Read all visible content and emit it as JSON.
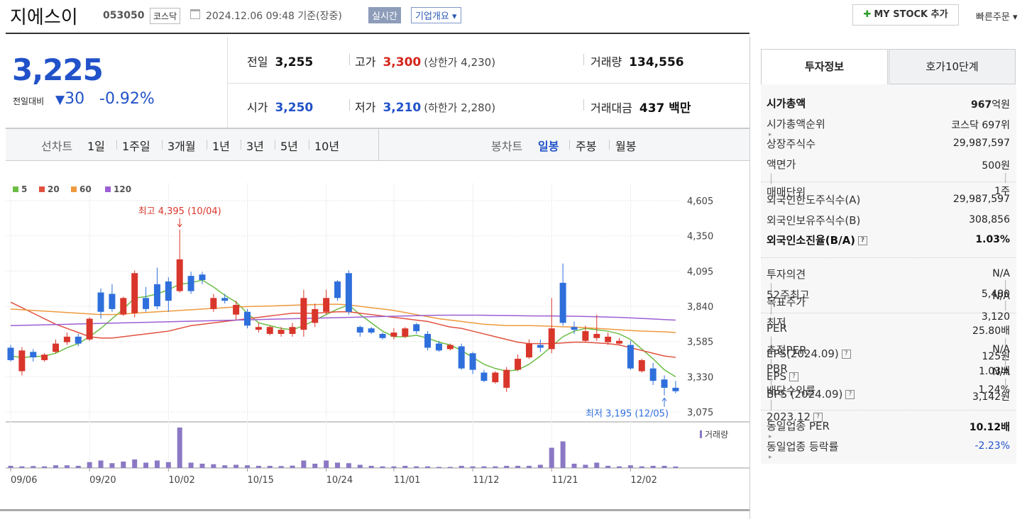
{
  "header": {
    "name": "지에스이",
    "code": "053050",
    "market": "코스닥",
    "time": "2024.12.06 09:48 기준(장중)",
    "realtime": "실시간",
    "overview": "기업개요",
    "my_stock": "MY STOCK 추가",
    "quick_order": "빠른주문"
  },
  "quote": {
    "price": "3,225",
    "change_label": "전일대비",
    "change": "30",
    "change_rate": "-0.92%",
    "fields": [
      {
        "label": "전일",
        "value": "3,255"
      },
      {
        "label": "고가",
        "value": "3,300",
        "note": "(상한가 4,230)"
      },
      {
        "label": "거래량",
        "value": "134,556"
      },
      {
        "label": "시가",
        "value": "3,250"
      },
      {
        "label": "저가",
        "value": "3,210",
        "note": "(하한가 2,280)"
      },
      {
        "label": "거래대금",
        "value": "437 백만"
      }
    ]
  },
  "period_tabs": {
    "line_label": "선차트",
    "line": [
      "1일",
      "1주일",
      "3개월",
      "1년",
      "3년",
      "5년",
      "10년"
    ],
    "candle_label": "봉차트",
    "candle": [
      "일봉",
      "주봉",
      "월봉"
    ]
  },
  "chart_data": [
    {
      "type": "candlestick",
      "categories": [
        "09/06",
        null,
        null,
        null,
        null,
        null,
        null,
        "09/20",
        null,
        null,
        null,
        null,
        null,
        null,
        "10/02",
        null,
        null,
        null,
        null,
        null,
        null,
        "10/15",
        null,
        null,
        null,
        null,
        null,
        null,
        "10/24",
        null,
        null,
        null,
        null,
        null,
        "11/01",
        null,
        null,
        null,
        null,
        null,
        null,
        "11/12",
        null,
        null,
        null,
        null,
        null,
        null,
        "11/21",
        null,
        null,
        null,
        null,
        null,
        null,
        "12/02",
        null,
        null,
        null,
        null
      ],
      "open": [
        3540,
        3370,
        3510,
        3450,
        3510,
        3580,
        3620,
        3600,
        3940,
        3930,
        3780,
        3790,
        3900,
        4000,
        4020,
        3950,
        4060,
        4070,
        3820,
        3900,
        3780,
        3800,
        3670,
        3640,
        3640,
        3640,
        3670,
        3720,
        3800,
        4020,
        4080,
        3690,
        3680,
        3640,
        3620,
        3620,
        3710,
        3640,
        3570,
        3530,
        3550,
        3500,
        3360,
        3290,
        3250,
        3380,
        3470,
        3560,
        3530,
        4010,
        3690,
        3590,
        3610,
        3580,
        3570,
        3560,
        3370,
        3390,
        3310,
        3250
      ],
      "high": [
        3560,
        3545,
        3530,
        3500,
        3600,
        3650,
        3640,
        3760,
        3970,
        4000,
        3910,
        4100,
        3980,
        4120,
        4050,
        4395,
        4090,
        4090,
        3930,
        3930,
        3880,
        3820,
        3720,
        3700,
        3690,
        3720,
        3960,
        3860,
        3960,
        4030,
        4100,
        3700,
        3690,
        3650,
        3680,
        3690,
        3720,
        3660,
        3590,
        3570,
        3570,
        3510,
        3380,
        3370,
        3400,
        3490,
        3600,
        3600,
        3900,
        4150,
        3730,
        3700,
        3780,
        3650,
        3610,
        3590,
        3460,
        3430,
        3340,
        3300
      ],
      "low": [
        3440,
        3340,
        3440,
        3440,
        3500,
        3560,
        3550,
        3590,
        3750,
        3800,
        3770,
        3760,
        3800,
        3820,
        3800,
        3940,
        3930,
        4000,
        3800,
        3860,
        3740,
        3680,
        3650,
        3630,
        3620,
        3620,
        3620,
        3690,
        3780,
        3880,
        3780,
        3620,
        3640,
        3600,
        3600,
        3610,
        3640,
        3520,
        3510,
        3520,
        3380,
        3350,
        3290,
        3280,
        3220,
        3370,
        3460,
        3510,
        3500,
        3700,
        3640,
        3580,
        3590,
        3560,
        3560,
        3380,
        3360,
        3270,
        3195,
        3210
      ],
      "close": [
        3450,
        3520,
        3470,
        3490,
        3570,
        3620,
        3570,
        3750,
        3800,
        3820,
        3900,
        4080,
        3820,
        3840,
        3880,
        4180,
        3950,
        4030,
        3900,
        3880,
        3850,
        3700,
        3690,
        3690,
        3670,
        3690,
        3900,
        3820,
        3900,
        3900,
        3800,
        3650,
        3650,
        3610,
        3650,
        3680,
        3660,
        3540,
        3520,
        3560,
        3390,
        3380,
        3300,
        3360,
        3380,
        3460,
        3570,
        3540,
        3680,
        3720,
        3670,
        3660,
        3640,
        3620,
        3590,
        3390,
        3450,
        3300,
        3250,
        3225
      ],
      "up_color": "#d9362b",
      "down_color": "#2f6fdc",
      "series": [
        {
          "name": "5",
          "color": "#6cbd45",
          "values": [
            3480,
            3470,
            3475,
            3480,
            3500,
            3540,
            3570,
            3620,
            3680,
            3750,
            3820,
            3900,
            3910,
            3930,
            3960,
            4000,
            4010,
            4030,
            3980,
            3920,
            3870,
            3790,
            3720,
            3700,
            3680,
            3670,
            3700,
            3740,
            3780,
            3820,
            3850,
            3780,
            3720,
            3660,
            3620,
            3620,
            3630,
            3610,
            3580,
            3560,
            3520,
            3470,
            3420,
            3390,
            3370,
            3380,
            3420,
            3480,
            3550,
            3620,
            3660,
            3680,
            3670,
            3660,
            3640,
            3600,
            3530,
            3460,
            3380,
            3330
          ]
        },
        {
          "name": "20",
          "color": "#e0513f",
          "values": [
            3870,
            3830,
            3790,
            3750,
            3710,
            3680,
            3650,
            3620,
            3610,
            3610,
            3620,
            3630,
            3640,
            3650,
            3660,
            3680,
            3700,
            3710,
            3720,
            3730,
            3740,
            3750,
            3760,
            3770,
            3780,
            3790,
            3790,
            3790,
            3795,
            3800,
            3800,
            3790,
            3780,
            3770,
            3760,
            3750,
            3740,
            3730,
            3710,
            3690,
            3680,
            3660,
            3640,
            3620,
            3600,
            3580,
            3570,
            3570,
            3570,
            3575,
            3580,
            3580,
            3575,
            3570,
            3560,
            3540,
            3520,
            3500,
            3480,
            3470
          ]
        },
        {
          "name": "60",
          "color": "#ee9a3e",
          "values": [
            3820,
            3815,
            3810,
            3805,
            3800,
            3795,
            3790,
            3785,
            3780,
            3780,
            3785,
            3790,
            3795,
            3800,
            3805,
            3810,
            3815,
            3820,
            3825,
            3830,
            3835,
            3838,
            3840,
            3842,
            3845,
            3848,
            3850,
            3852,
            3855,
            3855,
            3850,
            3840,
            3830,
            3820,
            3810,
            3795,
            3780,
            3765,
            3750,
            3740,
            3730,
            3720,
            3710,
            3705,
            3700,
            3700,
            3700,
            3698,
            3695,
            3692,
            3690,
            3685,
            3680,
            3675,
            3670,
            3665,
            3660,
            3658,
            3655,
            3650
          ]
        },
        {
          "name": "120",
          "color": "#9c5fd3",
          "values": [
            3700,
            3702,
            3704,
            3706,
            3708,
            3710,
            3712,
            3714,
            3716,
            3718,
            3720,
            3722,
            3724,
            3726,
            3728,
            3730,
            3732,
            3734,
            3736,
            3738,
            3740,
            3742,
            3744,
            3746,
            3748,
            3750,
            3752,
            3754,
            3756,
            3758,
            3760,
            3762,
            3764,
            3766,
            3768,
            3770,
            3772,
            3774,
            3775,
            3776,
            3776,
            3776,
            3775,
            3774,
            3773,
            3772,
            3771,
            3770,
            3770,
            3769,
            3768,
            3766,
            3764,
            3762,
            3760,
            3756,
            3752,
            3748,
            3744,
            3740
          ]
        }
      ],
      "ylim": [
        3075,
        4605
      ],
      "yticks": [
        {
          "value": 4605,
          "label": "4,605"
        },
        {
          "value": 4350,
          "label": "4,350"
        },
        {
          "value": 4095,
          "label": "4,095"
        },
        {
          "value": 3840,
          "label": "3,840"
        },
        {
          "value": 3585,
          "label": "3,585"
        },
        {
          "value": 3330,
          "label": "3,330"
        },
        {
          "value": 3075,
          "label": "3,075"
        }
      ],
      "grid": true,
      "annotations": [
        {
          "text": "최고 4,395 (10/04)",
          "color": "#d9362b"
        },
        {
          "text": "최저 3,195 (12/05)",
          "color": "#2f6fdc"
        }
      ]
    },
    {
      "type": "bar",
      "series": [
        {
          "name": "거래량",
          "color": "#8b78c5",
          "values": [
            200000,
            150000,
            180000,
            150000,
            250000,
            250000,
            200000,
            550000,
            700000,
            450000,
            600000,
            800000,
            500000,
            700000,
            550000,
            3800000,
            500000,
            400000,
            350000,
            250000,
            300000,
            250000,
            200000,
            200000,
            180000,
            220000,
            700000,
            400000,
            700000,
            500000,
            450000,
            300000,
            200000,
            150000,
            150000,
            200000,
            150000,
            150000,
            100000,
            100000,
            200000,
            150000,
            150000,
            150000,
            200000,
            200000,
            200000,
            300000,
            1900000,
            2500000,
            400000,
            300000,
            500000,
            200000,
            150000,
            250000,
            150000,
            200000,
            200000,
            134556
          ]
        }
      ],
      "ylim": [
        0,
        4000000
      ]
    }
  ],
  "info": {
    "tabs": [
      "투자정보",
      "호가10단계"
    ],
    "groups": [
      [
        {
          "label": [
            "시가총액"
          ],
          "value": [
            "967"
          ],
          "unit": "억원"
        },
        {
          "label": [
            "시가총액순위"
          ],
          "value": [
            "코스닥 697위"
          ]
        },
        {
          "label": [
            "상장주식수"
          ],
          "value": [
            "29,987,597"
          ]
        },
        {
          "label": [
            "액면가",
            "매매단위"
          ],
          "value": [
            "500원",
            "1주"
          ]
        }
      ],
      [
        {
          "label": [
            "외국인한도주식수(A)"
          ],
          "value": [
            "29,987,597"
          ]
        },
        {
          "label": [
            "외국인보유주식수(B)"
          ],
          "value": [
            "308,856"
          ]
        },
        {
          "label": [
            "외국인소진율(B/A)"
          ],
          "value": [
            "1.03%"
          ]
        }
      ],
      [
        {
          "label": [
            "투자의견",
            "목표주가"
          ],
          "value": [
            "N/A",
            "N/A"
          ]
        },
        {
          "label": [
            "52주최고",
            "최저"
          ],
          "value": [
            "5,480",
            "3,120"
          ]
        }
      ],
      [
        {
          "label": [
            "PER",
            "EPS(2024.09)"
          ],
          "value": [
            "25.80배",
            "125원"
          ]
        },
        {
          "label": [
            "추정PER",
            "EPS"
          ],
          "value": [
            "N/A",
            "N/A"
          ]
        },
        {
          "label": [
            "PBR",
            "BPS (2024.09)"
          ],
          "value": [
            "1.03배",
            "3,142원"
          ]
        },
        {
          "label": [
            "배당수익률",
            "2023.12"
          ],
          "value": [
            "1.24%"
          ]
        }
      ],
      [
        {
          "label": [
            "동일업종 PER"
          ],
          "value": [
            "10.12배"
          ]
        },
        {
          "label": [
            "동일업종 등락률"
          ],
          "value": [
            "-2.23%"
          ]
        }
      ]
    ]
  }
}
